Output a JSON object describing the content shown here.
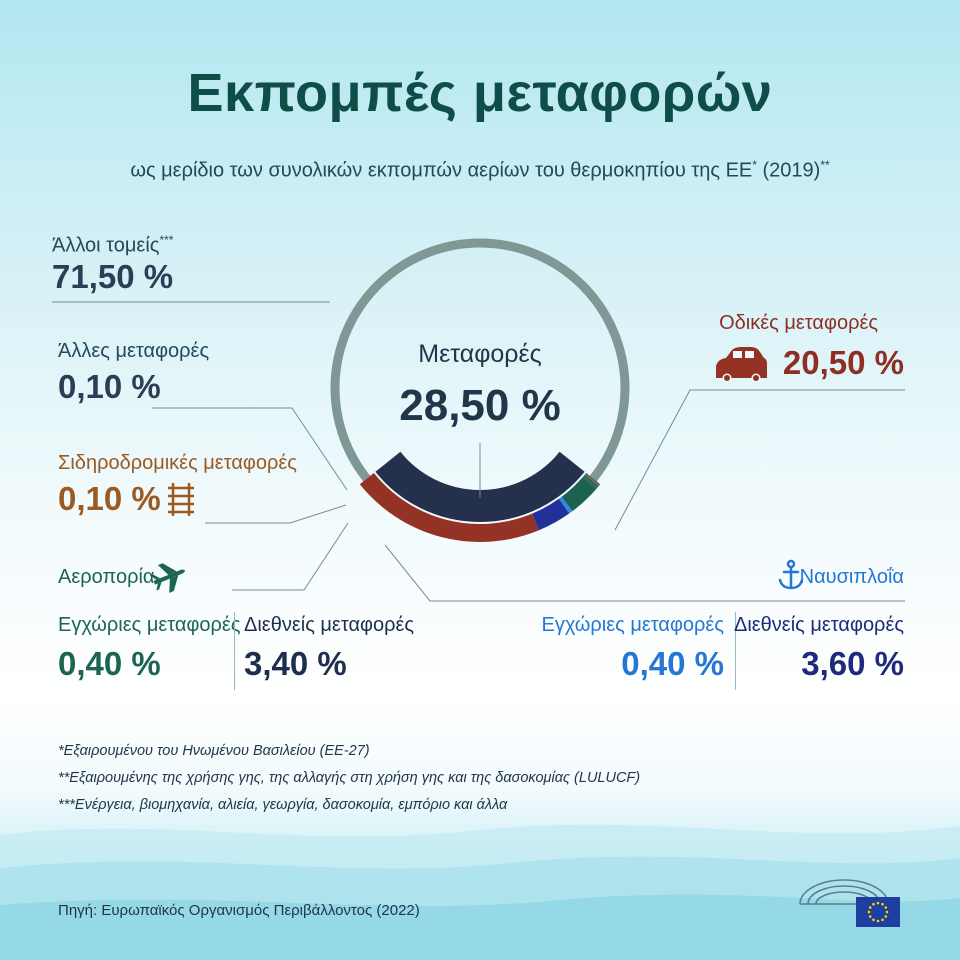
{
  "title": "Εκπομπές μεταφορών",
  "subtitle": {
    "main": "ως μερίδιο των συνολικών εκπομπών αερίων του θερμοκηπίου της ΕΕ",
    "sup1": "*",
    "year": " (2019)",
    "sup2": "**"
  },
  "chart_data": {
    "type": "donut",
    "title": "Εκπομπές μεταφορών",
    "unit": "%",
    "center": {
      "label": "Μεταφορές",
      "value": 28.5,
      "value_text": "28,50 %"
    },
    "segments": [
      {
        "name": "Άλλοι τομείς***",
        "value": 71.5,
        "value_text": "71,50 %",
        "color": "#7f9896"
      },
      {
        "name": "Μεταφορές",
        "value": 28.5,
        "value_text": "28,50 %",
        "color": "#24304c"
      }
    ],
    "transport_breakdown": [
      {
        "name": "Οδικές μεταφορές",
        "value": 20.5,
        "value_text": "20,50 %",
        "color": "#953226"
      },
      {
        "name": "Ναυσιπλοΐα – Διεθνείς μεταφορές",
        "value": 3.6,
        "value_text": "3,60 %",
        "color": "#22309a"
      },
      {
        "name": "Ναυσιπλοΐα – Εγχώριες μεταφορές",
        "value": 0.4,
        "value_text": "0,40 %",
        "color": "#2f88e4"
      },
      {
        "name": "Αεροπορία – Διεθνείς μεταφορές",
        "value": 3.4,
        "value_text": "3,40 %",
        "color": "#1d6250"
      },
      {
        "name": "Αεροπορία – Εγχώριες μεταφορές",
        "value": 0.4,
        "value_text": "0,40 %",
        "color": "#2e6b5e"
      },
      {
        "name": "Σιδηροδρομικές μεταφορές",
        "value": 0.1,
        "value_text": "0,10 %",
        "color": "#a55c25"
      },
      {
        "name": "Άλλες μεταφορές",
        "value": 0.1,
        "value_text": "0,10 %",
        "color": "#3c4b62"
      }
    ]
  },
  "labels": {
    "other_sectors": {
      "name": "Άλλοι τομείς",
      "sup": "***",
      "value": "71,50 %"
    },
    "other_transport": {
      "name": "Άλλες μεταφορές",
      "value": "0,10 %"
    },
    "rail": {
      "name": "Σιδηροδρομικές μεταφορές",
      "value": "0,10 %",
      "icon": "rail-track-icon"
    },
    "road": {
      "name": "Οδικές μεταφορές",
      "value": "20,50 %",
      "icon": "car-icon"
    },
    "aviation": {
      "name": "Αεροπορία",
      "icon": "airplane-icon",
      "domestic": {
        "name": "Εγχώριες μεταφορές",
        "value": "0,40 %"
      },
      "international": {
        "name": "Διεθνείς μεταφορές",
        "value": "3,40 %"
      }
    },
    "shipping": {
      "name": "Ναυσιπλοΐα",
      "icon": "anchor-icon",
      "domestic": {
        "name": "Εγχώριες μεταφορές",
        "value": "0,40 %"
      },
      "international": {
        "name": "Διεθνείς μεταφορές",
        "value": "3,60 %"
      }
    }
  },
  "footnotes": [
    "*Εξαιρουμένου του Ηνωμένου Βασιλείου (ΕΕ-27)",
    "**Εξαιρουμένης της χρήσης γης, της αλλαγής στη χρήση γης και της δασοκομίας (LULUCF)",
    "***Ενέργεια, βιομηχανία, αλιεία, γεωργία, δασοκομία, εμπόριο και άλλα"
  ],
  "source": "Πηγή: Ευρωπαϊκός Οργανισμός Περιβάλλοντος (2022)",
  "logos": {
    "parliament": "european-parliament-logo",
    "flag": "eu-flag-icon"
  }
}
